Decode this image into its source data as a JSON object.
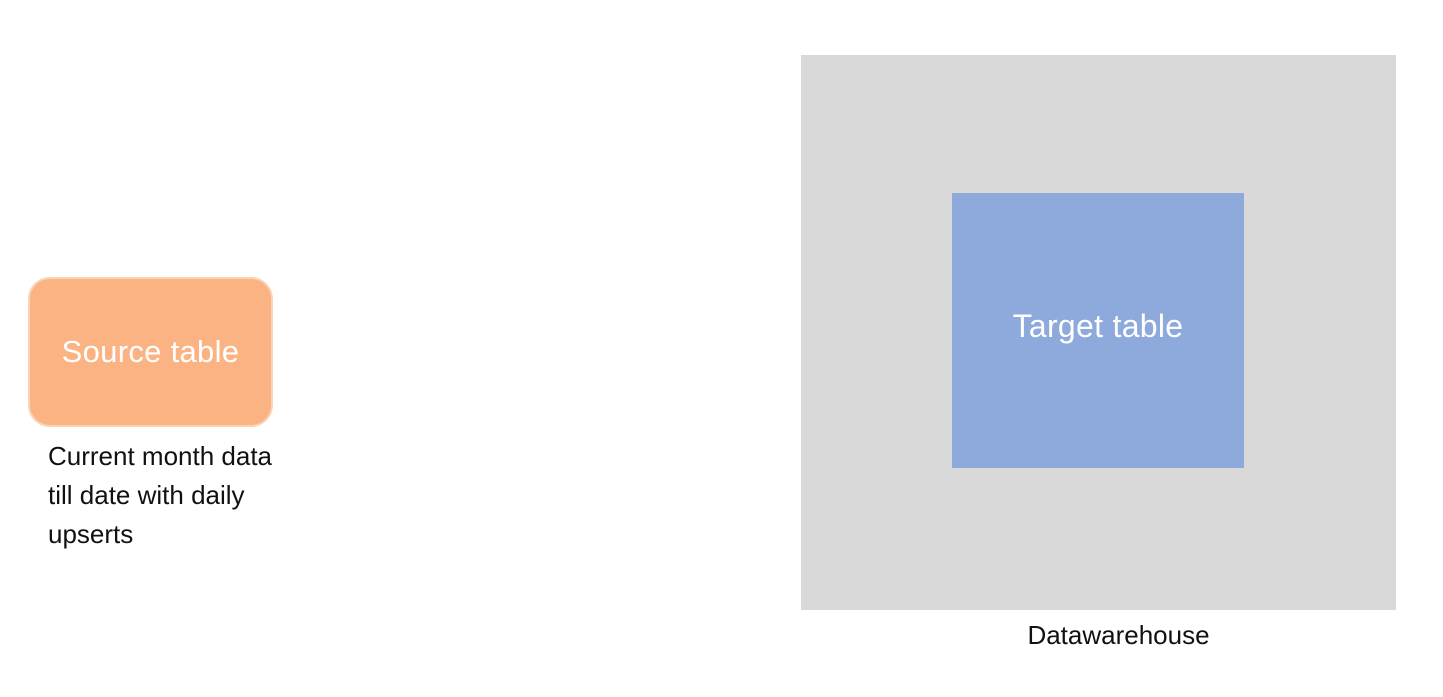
{
  "source": {
    "label": "Source table",
    "caption": "Current month data\ntill date with daily\nupserts",
    "fill_color": "#FBB383"
  },
  "warehouse": {
    "label": "Datawarehouse",
    "fill_color": "#D9D9D9",
    "target": {
      "label": "Target table",
      "fill_color": "#8EA9DB"
    }
  }
}
